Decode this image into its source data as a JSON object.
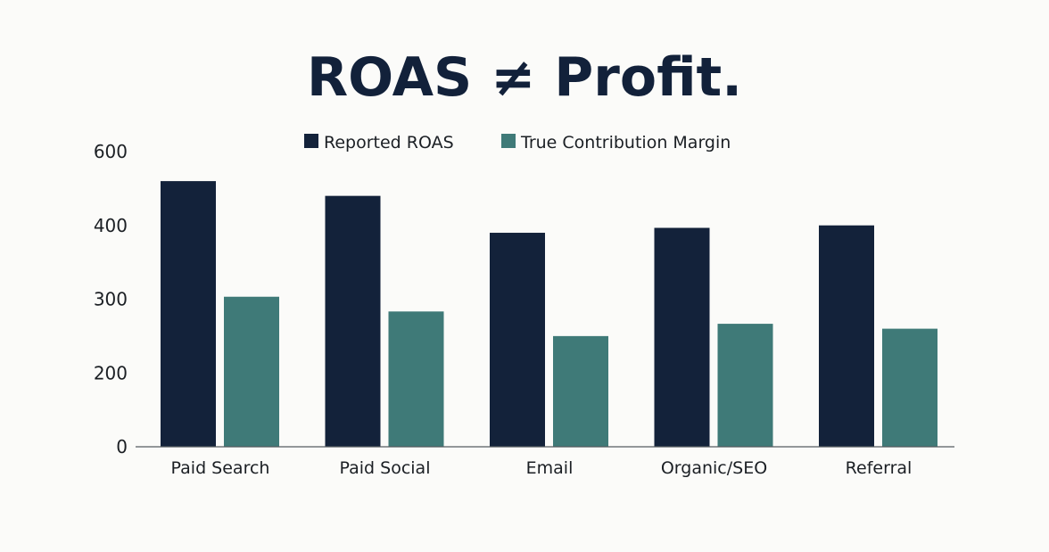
{
  "chart_data": {
    "type": "bar",
    "title": "ROAS ≠ Profit.",
    "xlabel": "",
    "ylabel": "",
    "categories": [
      "Paid Search",
      "Paid Social",
      "Email",
      "Organic/SEO",
      "Referral"
    ],
    "series": [
      {
        "name": "Reported ROAS",
        "color": "#13223a",
        "values": [
          540,
          510,
          435,
          445,
          450
        ]
      },
      {
        "name": "True Contribution Margin",
        "color": "#3f7a78",
        "values": [
          305,
          275,
          225,
          250,
          240
        ]
      }
    ],
    "y_tick_labels": [
      "0",
      "200",
      "300",
      "400",
      "600"
    ],
    "ylim": [
      0,
      600
    ],
    "grid": false,
    "legend_position": "top-center"
  }
}
